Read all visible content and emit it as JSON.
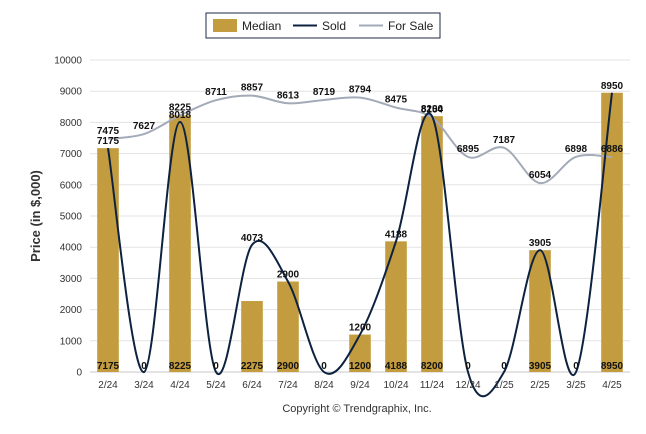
{
  "chart_data": {
    "type": "bar",
    "ylabel": "Price (in $,000)",
    "ylim": [
      0,
      10000
    ],
    "yticks": [
      0,
      1000,
      2000,
      3000,
      4000,
      5000,
      6000,
      7000,
      8000,
      9000,
      10000
    ],
    "grid": true,
    "legend_position": "top-center",
    "categories": [
      "2/24",
      "3/24",
      "4/24",
      "5/24",
      "6/24",
      "7/24",
      "8/24",
      "9/24",
      "10/24",
      "11/24",
      "12/24",
      "1/25",
      "2/25",
      "3/25",
      "4/25"
    ],
    "series": [
      {
        "name": "Median",
        "type": "bar",
        "color": "#c39c3f",
        "values": [
          7175,
          0,
          8225,
          0,
          2275,
          2900,
          0,
          1200,
          4188,
          8200,
          0,
          0,
          3905,
          0,
          8950
        ]
      },
      {
        "name": "Sold",
        "type": "line",
        "color": "#0d2240",
        "values": [
          7175,
          0,
          8018,
          0,
          4073,
          2900,
          0,
          1200,
          4188,
          8200,
          0,
          0,
          3905,
          0,
          8950
        ]
      },
      {
        "name": "For Sale",
        "type": "line",
        "color": "#a3aab8",
        "values": [
          7475,
          7627,
          8225,
          8711,
          8857,
          8613,
          8719,
          8794,
          8475,
          8154,
          6895,
          7187,
          6054,
          6898,
          6886
        ]
      }
    ]
  },
  "legend": {
    "items": [
      {
        "label": "Median",
        "color": "#c39c3f",
        "kind": "swatch"
      },
      {
        "label": "Sold",
        "color": "#0d2240",
        "kind": "line"
      },
      {
        "label": "For Sale",
        "color": "#a3aab8",
        "kind": "line"
      }
    ]
  },
  "footer": {
    "copyright": "Copyright © Trendgraphix, Inc."
  }
}
